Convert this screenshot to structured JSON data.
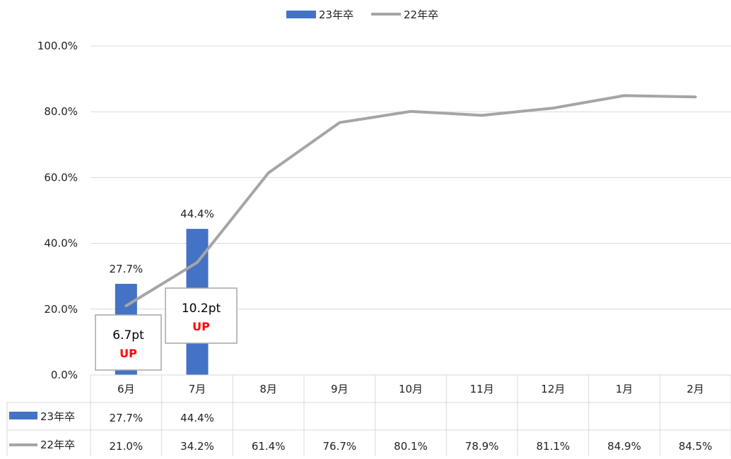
{
  "chart_data": {
    "type": "bar",
    "categories": [
      "6月",
      "7月",
      "8月",
      "9月",
      "10月",
      "11月",
      "12月",
      "1月",
      "2月"
    ],
    "series": [
      {
        "name": "23年卒",
        "type": "bar",
        "color": "#4472c4",
        "values": [
          27.7,
          44.4,
          null,
          null,
          null,
          null,
          null,
          null,
          null
        ],
        "labels": [
          "27.7%",
          "44.4%",
          "",
          "",
          "",
          "",
          "",
          "",
          ""
        ]
      },
      {
        "name": "22年卒",
        "type": "line",
        "color": "#a5a5a5",
        "values": [
          21.0,
          34.2,
          61.4,
          76.7,
          80.1,
          78.9,
          81.1,
          84.9,
          84.5
        ],
        "labels": [
          "21.0%",
          "34.2%",
          "61.4%",
          "76.7%",
          "80.1%",
          "78.9%",
          "81.1%",
          "84.9%",
          "84.5%"
        ]
      }
    ],
    "ylim": [
      0,
      100
    ],
    "yticks": [
      "0.0%",
      "20.0%",
      "40.0%",
      "60.0%",
      "80.0%",
      "100.0%"
    ],
    "grid": true,
    "legend": "top-center",
    "data_table": true,
    "annotations": [
      {
        "category": "6月",
        "value": "6.7pt",
        "tag": "UP"
      },
      {
        "category": "7月",
        "value": "10.2pt",
        "tag": "UP"
      }
    ],
    "colors": {
      "bar": "#4472c4",
      "line": "#a5a5a5",
      "up": "#ff0000",
      "grid": "#d9d9d9",
      "text": "#000000"
    }
  }
}
